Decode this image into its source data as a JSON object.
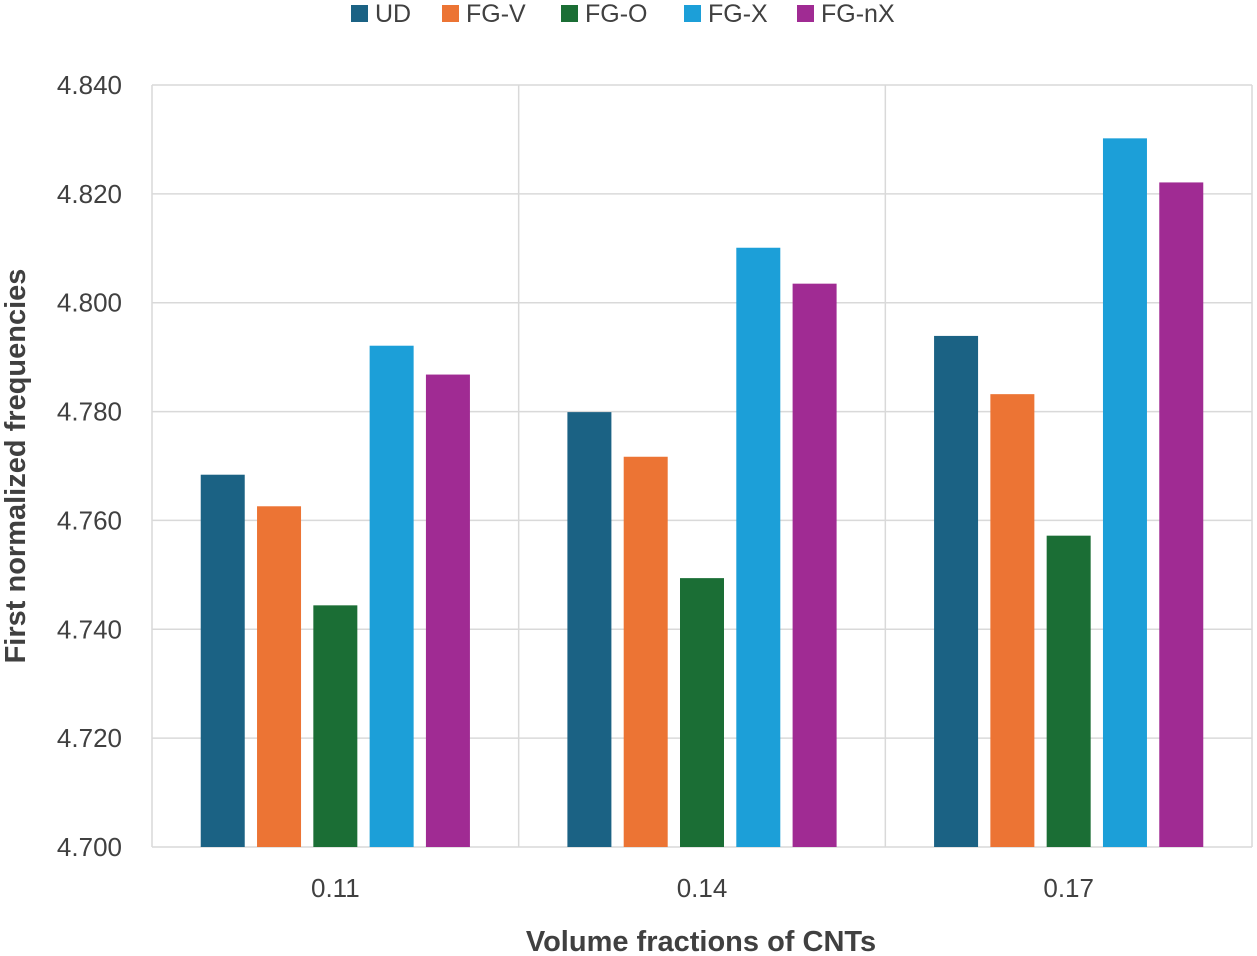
{
  "chart_data": {
    "type": "bar",
    "title": "",
    "xlabel": "Volume fractions of CNTs",
    "ylabel": "First normalized frequencies",
    "categories": [
      "0.11",
      "0.14",
      "0.17"
    ],
    "ylim": [
      4.7,
      4.84
    ],
    "yticks": [
      4.7,
      4.72,
      4.74,
      4.76,
      4.78,
      4.8,
      4.82,
      4.84
    ],
    "ytick_labels": [
      "4.700",
      "4.720",
      "4.740",
      "4.760",
      "4.780",
      "4.800",
      "4.820",
      "4.840"
    ],
    "grid": true,
    "legend_position": "top",
    "series": [
      {
        "name": "UD",
        "color": "#1b6284",
        "values": [
          4.7684,
          4.7799,
          4.7939
        ]
      },
      {
        "name": "FG-V",
        "color": "#ec7434",
        "values": [
          4.7626,
          4.7717,
          4.7832
        ]
      },
      {
        "name": "FG-O",
        "color": "#1b6e35",
        "values": [
          4.7444,
          4.7494,
          4.7572
        ]
      },
      {
        "name": "FG-X",
        "color": "#1c9fd8",
        "values": [
          4.7921,
          4.8101,
          4.8302
        ]
      },
      {
        "name": "FG-nX",
        "color": "#a02b93",
        "values": [
          4.7868,
          4.8035,
          4.8221
        ]
      }
    ]
  }
}
